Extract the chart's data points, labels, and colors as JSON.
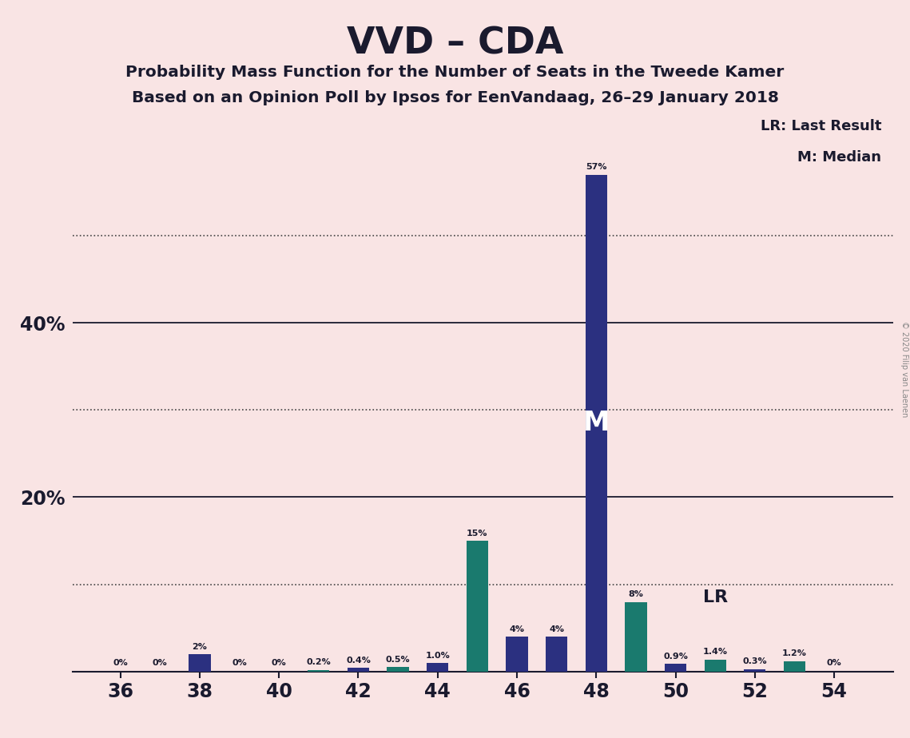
{
  "title": "VVD – CDA",
  "subtitle1": "Probability Mass Function for the Number of Seats in the Tweede Kamer",
  "subtitle2": "Based on an Opinion Poll by Ipsos for EenVandaag, 26–29 January 2018",
  "copyright": "© 2020 Filip van Laenen",
  "seats": [
    36,
    37,
    38,
    39,
    40,
    41,
    42,
    43,
    44,
    45,
    46,
    47,
    48,
    49,
    50,
    51,
    52,
    53,
    54
  ],
  "values": [
    0.0,
    0.0,
    2.0,
    0.0,
    0.0,
    0.2,
    0.4,
    0.5,
    1.0,
    15.0,
    4.0,
    4.0,
    57.0,
    8.0,
    0.9,
    1.4,
    0.3,
    1.2,
    0.0
  ],
  "colors": [
    "#2b3080",
    "#2b3080",
    "#2b3080",
    "#2b3080",
    "#2b3080",
    "#1a7a6e",
    "#2b3080",
    "#1a7a6e",
    "#2b3080",
    "#1a7a6e",
    "#2b3080",
    "#2b3080",
    "#2b3080",
    "#1a7a6e",
    "#2b3080",
    "#1a7a6e",
    "#2b3080",
    "#1a7a6e",
    "#2b3080"
  ],
  "labels": [
    "0%",
    "0%",
    "2%",
    "0%",
    "0%",
    "0.2%",
    "0.4%",
    "0.5%",
    "1.0%",
    "15%",
    "4%",
    "4%",
    "57%",
    "8%",
    "0.9%",
    "1.4%",
    "0.3%",
    "1.2%",
    "0%"
  ],
  "show_label": [
    true,
    true,
    true,
    true,
    true,
    true,
    true,
    true,
    true,
    true,
    true,
    true,
    true,
    true,
    true,
    true,
    true,
    true,
    true
  ],
  "vvd_color": "#2b3080",
  "cda_color": "#1a7a6e",
  "background_color": "#f9e4e4",
  "median_seat": 48,
  "lr_seat": 49,
  "dotted_lines": [
    10,
    30,
    50
  ],
  "solid_lines": [
    20,
    40
  ],
  "ylim": [
    0,
    65
  ],
  "ytick_values": [
    20,
    40
  ],
  "ytick_labels": [
    "20%",
    "40%"
  ],
  "xticks": [
    36,
    38,
    40,
    42,
    44,
    46,
    48,
    50,
    52,
    54
  ],
  "xlim": [
    34.8,
    55.5
  ]
}
